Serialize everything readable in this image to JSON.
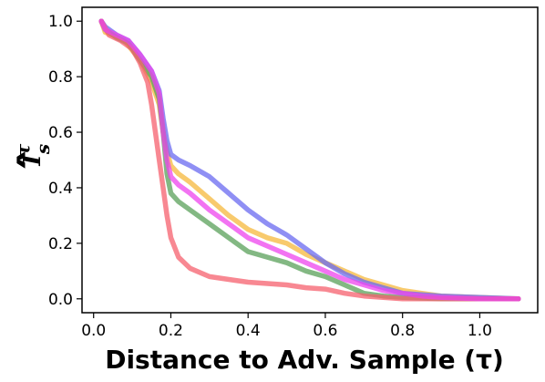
{
  "chart_data": {
    "type": "line",
    "title": "",
    "xlabel": "Distance to Adv. Sample (τ)",
    "ylabel": {
      "base": "I",
      "superscript": "τ",
      "subscript": "s",
      "hat": "∧"
    },
    "xlim": [
      -0.03,
      1.15
    ],
    "ylim": [
      -0.05,
      1.05
    ],
    "xticks": [
      0.0,
      0.2,
      0.4,
      0.6,
      0.8,
      1.0
    ],
    "xtick_labels": [
      "0.0",
      "0.2",
      "0.4",
      "0.6",
      "0.8",
      "1.0"
    ],
    "yticks": [
      0.0,
      0.2,
      0.4,
      0.6,
      0.8,
      1.0
    ],
    "ytick_labels": [
      "0.0",
      "0.2",
      "0.4",
      "0.6",
      "0.8",
      "1.0"
    ],
    "grid": false,
    "legend": "none",
    "series": [
      {
        "color": "#f5b83c",
        "points": [
          [
            0.02,
            1.0
          ],
          [
            0.03,
            0.96
          ],
          [
            0.05,
            0.95
          ],
          [
            0.08,
            0.93
          ],
          [
            0.12,
            0.86
          ],
          [
            0.15,
            0.78
          ],
          [
            0.17,
            0.7
          ],
          [
            0.18,
            0.6
          ],
          [
            0.19,
            0.53
          ],
          [
            0.2,
            0.48
          ],
          [
            0.22,
            0.45
          ],
          [
            0.25,
            0.42
          ],
          [
            0.3,
            0.36
          ],
          [
            0.35,
            0.3
          ],
          [
            0.4,
            0.25
          ],
          [
            0.45,
            0.22
          ],
          [
            0.5,
            0.2
          ],
          [
            0.55,
            0.16
          ],
          [
            0.6,
            0.13
          ],
          [
            0.65,
            0.1
          ],
          [
            0.7,
            0.07
          ],
          [
            0.75,
            0.05
          ],
          [
            0.8,
            0.03
          ],
          [
            0.85,
            0.02
          ],
          [
            0.9,
            0.01
          ],
          [
            1.0,
            0.005
          ],
          [
            1.1,
            0.0
          ]
        ]
      },
      {
        "color": "#6a6af0",
        "points": [
          [
            0.02,
            1.0
          ],
          [
            0.03,
            0.98
          ],
          [
            0.06,
            0.95
          ],
          [
            0.09,
            0.93
          ],
          [
            0.12,
            0.88
          ],
          [
            0.15,
            0.82
          ],
          [
            0.17,
            0.75
          ],
          [
            0.18,
            0.65
          ],
          [
            0.19,
            0.57
          ],
          [
            0.2,
            0.52
          ],
          [
            0.22,
            0.5
          ],
          [
            0.25,
            0.48
          ],
          [
            0.3,
            0.44
          ],
          [
            0.35,
            0.38
          ],
          [
            0.4,
            0.32
          ],
          [
            0.45,
            0.27
          ],
          [
            0.5,
            0.23
          ],
          [
            0.55,
            0.18
          ],
          [
            0.6,
            0.13
          ],
          [
            0.65,
            0.09
          ],
          [
            0.7,
            0.06
          ],
          [
            0.75,
            0.04
          ],
          [
            0.8,
            0.02
          ],
          [
            0.85,
            0.015
          ],
          [
            0.9,
            0.01
          ],
          [
            1.0,
            0.005
          ],
          [
            1.1,
            0.0
          ]
        ]
      },
      {
        "color": "#5aa05a",
        "points": [
          [
            0.02,
            1.0
          ],
          [
            0.03,
            0.97
          ],
          [
            0.06,
            0.94
          ],
          [
            0.09,
            0.92
          ],
          [
            0.12,
            0.86
          ],
          [
            0.15,
            0.8
          ],
          [
            0.17,
            0.72
          ],
          [
            0.18,
            0.6
          ],
          [
            0.19,
            0.45
          ],
          [
            0.2,
            0.38
          ],
          [
            0.22,
            0.35
          ],
          [
            0.25,
            0.32
          ],
          [
            0.3,
            0.27
          ],
          [
            0.35,
            0.22
          ],
          [
            0.4,
            0.17
          ],
          [
            0.45,
            0.15
          ],
          [
            0.5,
            0.13
          ],
          [
            0.55,
            0.1
          ],
          [
            0.6,
            0.08
          ],
          [
            0.65,
            0.05
          ],
          [
            0.7,
            0.02
          ],
          [
            0.75,
            0.01
          ],
          [
            0.8,
            0.005
          ],
          [
            0.9,
            0.0
          ],
          [
            1.1,
            0.0
          ]
        ]
      },
      {
        "color": "#f5606e",
        "points": [
          [
            0.02,
            1.0
          ],
          [
            0.04,
            0.95
          ],
          [
            0.07,
            0.93
          ],
          [
            0.1,
            0.9
          ],
          [
            0.12,
            0.85
          ],
          [
            0.14,
            0.78
          ],
          [
            0.15,
            0.7
          ],
          [
            0.16,
            0.6
          ],
          [
            0.17,
            0.5
          ],
          [
            0.18,
            0.4
          ],
          [
            0.19,
            0.3
          ],
          [
            0.2,
            0.22
          ],
          [
            0.22,
            0.15
          ],
          [
            0.25,
            0.11
          ],
          [
            0.3,
            0.08
          ],
          [
            0.35,
            0.07
          ],
          [
            0.4,
            0.06
          ],
          [
            0.45,
            0.055
          ],
          [
            0.5,
            0.05
          ],
          [
            0.55,
            0.04
          ],
          [
            0.6,
            0.035
          ],
          [
            0.65,
            0.02
          ],
          [
            0.7,
            0.01
          ],
          [
            0.75,
            0.005
          ],
          [
            0.8,
            0.0
          ],
          [
            1.0,
            0.0
          ],
          [
            1.1,
            0.0
          ]
        ]
      },
      {
        "color": "#ee44ee",
        "points": [
          [
            0.02,
            1.0
          ],
          [
            0.03,
            0.97
          ],
          [
            0.06,
            0.95
          ],
          [
            0.09,
            0.93
          ],
          [
            0.12,
            0.88
          ],
          [
            0.15,
            0.82
          ],
          [
            0.17,
            0.74
          ],
          [
            0.18,
            0.6
          ],
          [
            0.19,
            0.5
          ],
          [
            0.2,
            0.44
          ],
          [
            0.22,
            0.41
          ],
          [
            0.25,
            0.38
          ],
          [
            0.3,
            0.32
          ],
          [
            0.35,
            0.27
          ],
          [
            0.4,
            0.22
          ],
          [
            0.45,
            0.19
          ],
          [
            0.5,
            0.16
          ],
          [
            0.55,
            0.13
          ],
          [
            0.6,
            0.1
          ],
          [
            0.65,
            0.07
          ],
          [
            0.7,
            0.05
          ],
          [
            0.75,
            0.03
          ],
          [
            0.8,
            0.02
          ],
          [
            0.85,
            0.01
          ],
          [
            0.9,
            0.005
          ],
          [
            1.0,
            0.0
          ],
          [
            1.1,
            0.0
          ]
        ]
      }
    ]
  }
}
